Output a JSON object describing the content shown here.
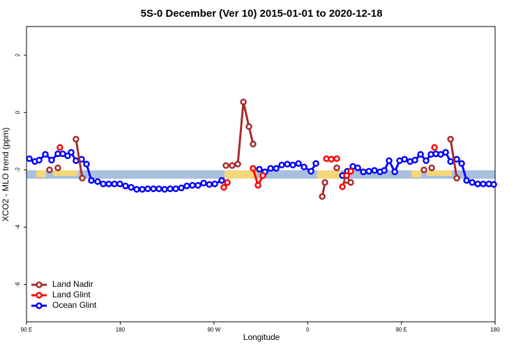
{
  "chart_data": {
    "type": "line",
    "title": "5S-0 December (Ver 10)   2015-01-01 to 2020-12-18",
    "x_label": "Longitude",
    "y_label": "XCO2 - MLO trend (ppm)",
    "xlim": [
      90,
      540
    ],
    "xticks": [
      {
        "value": 90,
        "label": "90 E"
      },
      180,
      {
        "value": 270,
        "label": "90 W"
      },
      {
        "value": 360,
        "label": "0"
      },
      {
        "value": 450,
        "label": "90 E"
      },
      {
        "value": 540,
        "label": "180"
      }
    ],
    "ylim": [
      -7.3,
      3
    ],
    "yticks": [
      -6,
      -4,
      -2,
      0,
      2
    ],
    "legend": "bottom-left",
    "series": [
      {
        "name": "Land Nadir",
        "color": "#a52a2a",
        "x": [
          112.1,
          null,
          120.1,
          null,
          137.5,
          143.6,
          null,
          281.5,
          287.5,
          292.9,
          298.3,
          303.6,
          307.6,
          null,
          374.0,
          376.6,
          null,
          388.0,
          null,
          397.4,
          401.4,
          null,
          471.7,
          null,
          479.1,
          null,
          497.2,
          503.2
        ],
        "values": [
          -2.0,
          null,
          -1.93,
          null,
          -0.93,
          -2.29,
          null,
          -1.85,
          -1.85,
          -1.8,
          0.37,
          -0.49,
          -1.1,
          null,
          -2.93,
          -2.44,
          null,
          -1.93,
          null,
          -2.37,
          -2.44,
          null,
          -2.0,
          null,
          -1.93,
          null,
          -0.93,
          -2.29
        ]
      },
      {
        "name": "Land Glint",
        "color": "#ff0000",
        "x": [
          122.1,
          null,
          279.5,
          282.9,
          null,
          307.6,
          312.3,
          317.0,
          null,
          378.0,
          382.7,
          388.0,
          null,
          393.4,
          397.4,
          401.4,
          null,
          481.8
        ],
        "values": [
          -1.22,
          null,
          -2.61,
          -2.44,
          null,
          -1.95,
          -2.54,
          -2.2,
          null,
          -1.61,
          -1.63,
          -1.61,
          null,
          -2.59,
          -2.2,
          -2.05,
          null,
          -1.22
        ]
      },
      {
        "name": "Ocean Glint",
        "color": "#0000ff",
        "x": [
          92.7,
          98.0,
          102.1,
          108.1,
          114.1,
          120.1,
          124.8,
          129.5,
          132.9,
          137.5,
          142.9,
          147.6,
          152.3,
          158.3,
          163.7,
          169.0,
          174.4,
          179.7,
          185.1,
          190.5,
          195.8,
          201.2,
          206.5,
          211.9,
          217.2,
          222.6,
          228.0,
          233.3,
          238.7,
          244.0,
          249.4,
          254.7,
          260.1,
          265.5,
          270.8,
          277.5,
          null,
          313.7,
          319.0,
          324.4,
          329.8,
          335.1,
          340.5,
          345.8,
          351.2,
          356.5,
          363.2,
          367.9,
          null,
          393.4,
          398.1,
          403.4,
          408.1,
          413.5,
          418.8,
          424.2,
          429.5,
          433.6,
          438.2,
          443.6,
          448.3,
          453.0,
          458.3,
          463.0,
          468.4,
          473.7,
          478.4,
          483.1,
          487.8,
          492.5,
          497.2,
          503.2,
          507.9,
          512.6,
          518.0,
          523.3,
          528.6,
          534.0,
          538.7
        ],
        "values": [
          -1.61,
          -1.71,
          -1.66,
          -1.46,
          -1.66,
          -1.44,
          -1.44,
          -1.51,
          -1.39,
          -1.68,
          -1.63,
          -1.8,
          -2.37,
          -2.41,
          -2.49,
          -2.49,
          -2.49,
          -2.49,
          -2.56,
          -2.61,
          -2.68,
          -2.68,
          -2.66,
          -2.66,
          -2.66,
          -2.68,
          -2.66,
          -2.66,
          -2.63,
          -2.56,
          -2.54,
          -2.54,
          -2.46,
          -2.51,
          -2.49,
          -2.37,
          null,
          -1.98,
          -2.07,
          -1.95,
          -1.95,
          -1.83,
          -1.8,
          -1.83,
          -1.78,
          -1.9,
          -2.05,
          -1.78,
          null,
          -2.2,
          -2.05,
          -1.88,
          -1.93,
          -2.07,
          -2.05,
          -2.02,
          -2.07,
          -2.02,
          -1.68,
          -2.07,
          -1.68,
          -1.63,
          -1.71,
          -1.66,
          -1.46,
          -1.68,
          -1.46,
          -1.44,
          -1.46,
          -1.39,
          -1.71,
          -1.63,
          -1.78,
          -2.37,
          -2.44,
          -2.49,
          -2.49,
          -2.49,
          -2.51
        ]
      }
    ]
  }
}
